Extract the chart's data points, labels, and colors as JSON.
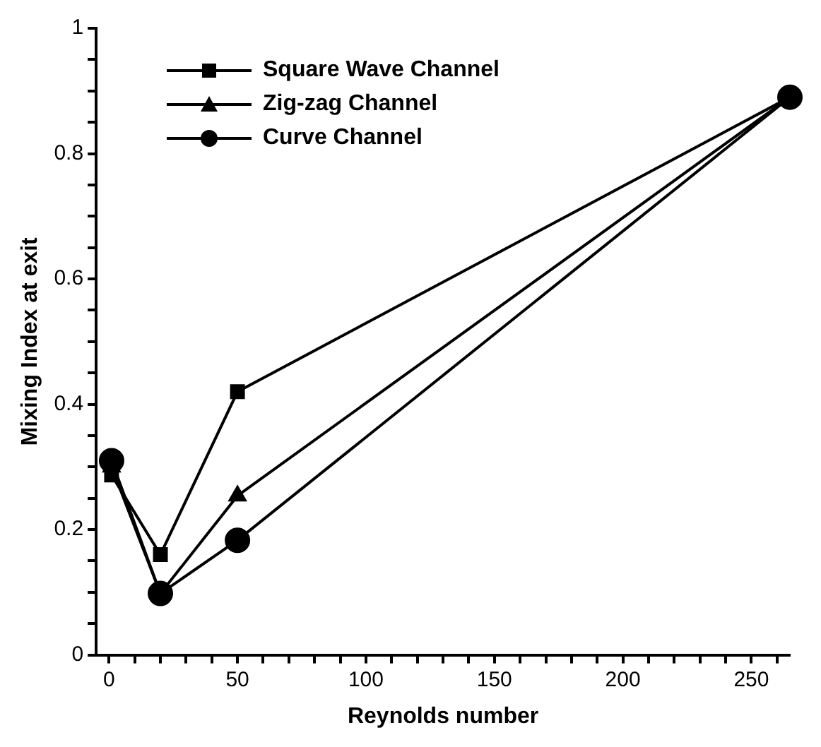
{
  "chart_data": {
    "type": "line",
    "xlabel": "Reynolds number",
    "ylabel": "Mixing Index at exit",
    "x": [
      1,
      20,
      50,
      265
    ],
    "series": [
      {
        "name": "Square Wave Channel",
        "color": "#000000",
        "marker": "square",
        "values": [
          0.287,
          0.16,
          0.42,
          0.89
        ]
      },
      {
        "name": "Zig-zag Channel",
        "color": "#000000",
        "marker": "triangle",
        "values": [
          0.3,
          0.098,
          0.254,
          0.89
        ]
      },
      {
        "name": "Curve Channel",
        "color": "#000000",
        "marker": "circle",
        "values": [
          0.31,
          0.098,
          0.183,
          0.89
        ]
      }
    ],
    "xlim": [
      -5,
      265
    ],
    "xticks": [
      0,
      {
        "value": 10,
        "label": null
      },
      {
        "value": 20,
        "label": null
      },
      {
        "value": 30,
        "label": null
      },
      {
        "value": 40,
        "label": null
      },
      50,
      {
        "value": 60,
        "label": null
      },
      {
        "value": 70,
        "label": null
      },
      {
        "value": 80,
        "label": null
      },
      {
        "value": 90,
        "label": null
      },
      100,
      {
        "value": 110,
        "label": null
      },
      {
        "value": 120,
        "label": null
      },
      {
        "value": 130,
        "label": null
      },
      {
        "value": 140,
        "label": null
      },
      150,
      {
        "value": 160,
        "label": null
      },
      {
        "value": 170,
        "label": null
      },
      {
        "value": 180,
        "label": null
      },
      {
        "value": 190,
        "label": null
      },
      200,
      {
        "value": 210,
        "label": null
      },
      {
        "value": 220,
        "label": null
      },
      {
        "value": 230,
        "label": null
      },
      {
        "value": 240,
        "label": null
      },
      250,
      {
        "value": 260,
        "label": null
      }
    ],
    "ylim": [
      0,
      1
    ],
    "yticks": [
      0,
      {
        "value": 0.05,
        "label": null
      },
      {
        "value": 0.1,
        "label": null
      },
      {
        "value": 0.15,
        "label": null
      },
      0.2,
      {
        "value": 0.25,
        "label": null
      },
      {
        "value": 0.3,
        "label": null
      },
      {
        "value": 0.35,
        "label": null
      },
      0.4,
      {
        "value": 0.45,
        "label": null
      },
      {
        "value": 0.5,
        "label": null
      },
      {
        "value": 0.55,
        "label": null
      },
      0.6,
      {
        "value": 0.65,
        "label": null
      },
      {
        "value": 0.7,
        "label": null
      },
      {
        "value": 0.75,
        "label": null
      },
      0.8,
      {
        "value": 0.85,
        "label": null
      },
      {
        "value": 0.9,
        "label": null
      },
      {
        "value": 0.95,
        "label": null
      },
      1
    ],
    "grid": false,
    "legend": "top left"
  }
}
